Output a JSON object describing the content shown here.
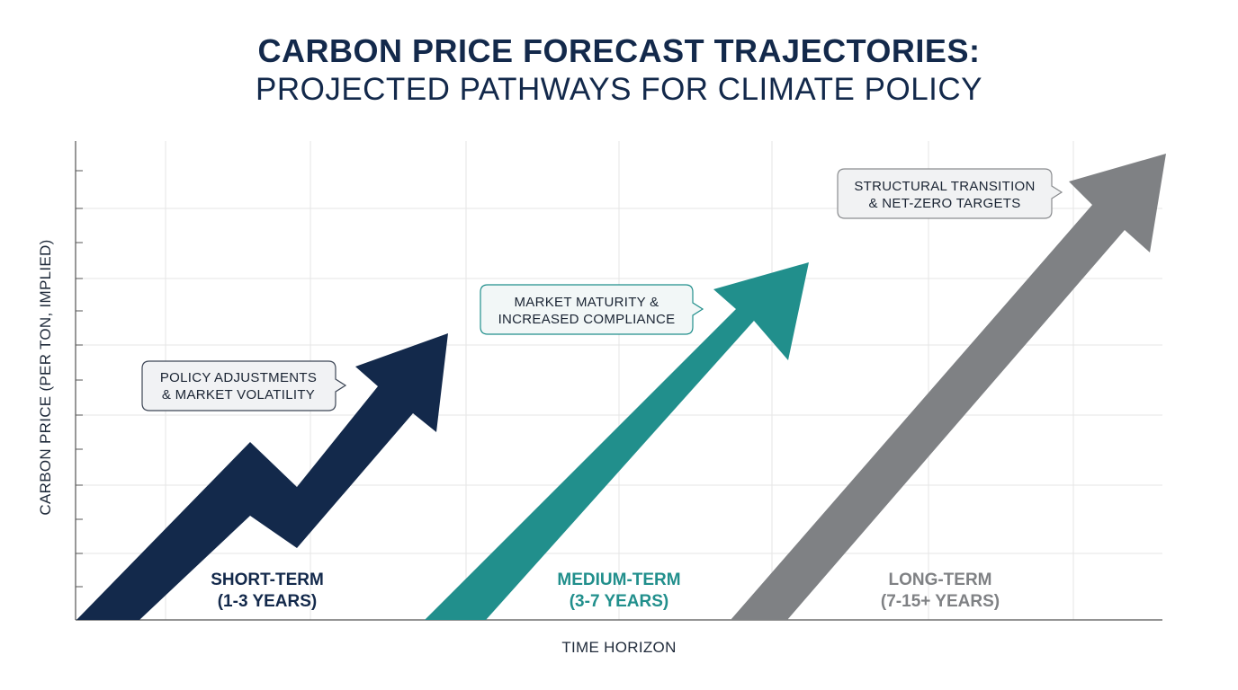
{
  "title": "CARBON PRICE FORECAST TRAJECTORIES:",
  "subtitle": "PROJECTED PATHWAYS FOR CLIMATE POLICY",
  "colors": {
    "short": "#13294b",
    "medium": "#218f8c",
    "long": "#7f8184",
    "grid": "#e6e6e6",
    "axis": "#555555"
  },
  "chart_data": {
    "type": "line",
    "xlabel": "TIME HORIZON",
    "ylabel": "CARBON PRICE (PER TON, IMPLIED)",
    "grid": true,
    "series": [
      {
        "key": "short",
        "label_line1": "SHORT-TERM",
        "label_line2": "(1-3 YEARS)",
        "callout_line1": "POLICY ADJUSTMENTS",
        "callout_line2": "& MARKET VOLATILITY"
      },
      {
        "key": "medium",
        "label_line1": "MEDIUM-TERM",
        "label_line2": "(3-7 YEARS)",
        "callout_line1": "MARKET MATURITY &",
        "callout_line2": "INCREASED COMPLIANCE"
      },
      {
        "key": "long",
        "label_line1": "LONG-TERM",
        "label_line2": "(7-15+ YEARS)",
        "callout_line1": "STRUCTURAL TRANSITION",
        "callout_line2": "& NET-ZERO TARGETS"
      }
    ]
  }
}
